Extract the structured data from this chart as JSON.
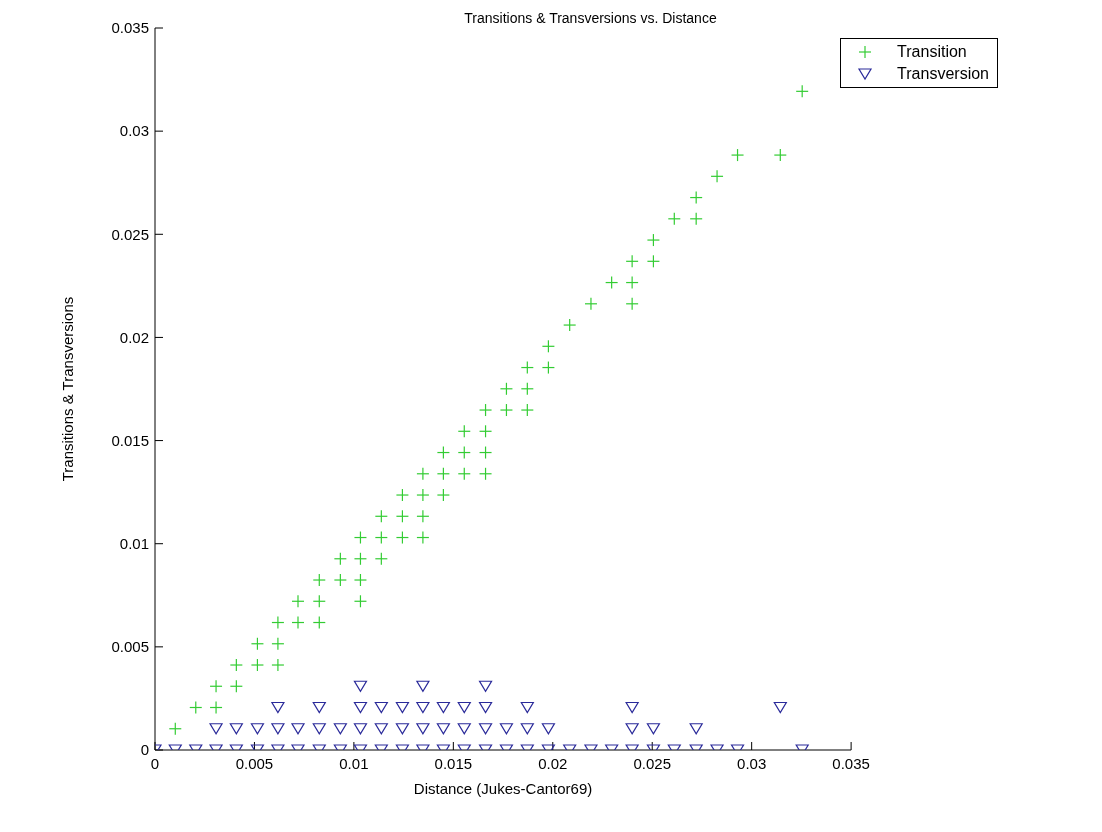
{
  "chart_data": {
    "type": "scatter",
    "title": "Transitions & Transversions vs. Distance",
    "xlabel": "Distance (Jukes-Cantor69)",
    "ylabel": "Transitions & Transversions",
    "xlim": [
      0,
      0.035
    ],
    "xticks": [
      0,
      0.005,
      0.01,
      0.015,
      0.02,
      0.025,
      0.03,
      0.035
    ],
    "ylim": [
      0,
      0.035
    ],
    "yticks": [
      0,
      0.005,
      0.01,
      0.015,
      0.02,
      0.025,
      0.03,
      0.035
    ],
    "legend": "top right",
    "series": [
      {
        "name": "Transition",
        "color": "#33cc33",
        "marker": "cross",
        "x": [
          0.00102,
          0.00205,
          0.00307,
          0.00307,
          0.00409,
          0.00409,
          0.00515,
          0.00515,
          0.00618,
          0.00618,
          0.00618,
          0.00719,
          0.00719,
          0.00826,
          0.00826,
          0.00826,
          0.00932,
          0.00932,
          0.01033,
          0.01033,
          0.01033,
          0.01033,
          0.01138,
          0.01138,
          0.01138,
          0.01244,
          0.01244,
          0.01244,
          0.01347,
          0.01347,
          0.01347,
          0.01347,
          0.0145,
          0.0145,
          0.0145,
          0.01555,
          0.01555,
          0.01555,
          0.01662,
          0.01662,
          0.01662,
          0.01662,
          0.01767,
          0.01767,
          0.01872,
          0.01872,
          0.01872,
          0.01978,
          0.01978,
          0.02085,
          0.02192,
          0.02296,
          0.02399,
          0.02399,
          0.02399,
          0.02506,
          0.02506,
          0.02611,
          0.02721,
          0.02721,
          0.02826,
          0.02929,
          0.03144,
          0.03254
        ],
        "values": [
          0.00103,
          0.00206,
          0.00206,
          0.00309,
          0.00309,
          0.00412,
          0.00412,
          0.00515,
          0.00412,
          0.00515,
          0.00618,
          0.00618,
          0.00721,
          0.00618,
          0.00721,
          0.00824,
          0.00824,
          0.00927,
          0.00721,
          0.00824,
          0.00927,
          0.0103,
          0.00927,
          0.0103,
          0.01133,
          0.0103,
          0.01133,
          0.01236,
          0.0103,
          0.01133,
          0.01236,
          0.01339,
          0.01236,
          0.01339,
          0.01442,
          0.01339,
          0.01442,
          0.01545,
          0.01339,
          0.01442,
          0.01545,
          0.01648,
          0.01648,
          0.01751,
          0.01648,
          0.01751,
          0.01854,
          0.01854,
          0.01957,
          0.0206,
          0.02163,
          0.02266,
          0.02163,
          0.02266,
          0.02369,
          0.02369,
          0.02472,
          0.02575,
          0.02575,
          0.02678,
          0.02781,
          0.02884,
          0.02884,
          0.03193
        ]
      },
      {
        "name": "Transversion",
        "color": "#2a2a9a",
        "marker": "triangle",
        "x": [
          0,
          0.00102,
          0.00205,
          0.00307,
          0.00307,
          0.00409,
          0.00409,
          0.00515,
          0.00515,
          0.00618,
          0.00618,
          0.00618,
          0.00719,
          0.00719,
          0.00826,
          0.00826,
          0.00826,
          0.00932,
          0.00932,
          0.01033,
          0.01033,
          0.01033,
          0.01033,
          0.01138,
          0.01138,
          0.01138,
          0.01244,
          0.01244,
          0.01244,
          0.01347,
          0.01347,
          0.01347,
          0.01347,
          0.0145,
          0.0145,
          0.0145,
          0.01555,
          0.01555,
          0.01555,
          0.01662,
          0.01662,
          0.01662,
          0.01662,
          0.01767,
          0.01767,
          0.01872,
          0.01872,
          0.01872,
          0.01978,
          0.01978,
          0.02085,
          0.02192,
          0.02296,
          0.02399,
          0.02399,
          0.02399,
          0.02506,
          0.02506,
          0.02611,
          0.02721,
          0.02721,
          0.02826,
          0.02929,
          0.03144,
          0.03254
        ],
        "values": [
          0,
          0,
          0,
          0,
          0.00103,
          0,
          0.00103,
          0,
          0.00103,
          0,
          0.00103,
          0.00206,
          0,
          0.00103,
          0,
          0.00103,
          0.00206,
          0,
          0.00103,
          0,
          0.00103,
          0.00206,
          0.00309,
          0,
          0.00103,
          0.00206,
          0,
          0.00103,
          0.00206,
          0,
          0.00103,
          0.00206,
          0.00309,
          0,
          0.00103,
          0.00206,
          0,
          0.00103,
          0.00206,
          0,
          0.00103,
          0.00206,
          0.00309,
          0,
          0.00103,
          0,
          0.00103,
          0.00206,
          0,
          0.00103,
          0,
          0,
          0,
          0,
          0.00103,
          0.00206,
          0,
          0.00103,
          0,
          0,
          0.00103,
          0,
          0,
          0.00206,
          0
        ]
      }
    ]
  }
}
